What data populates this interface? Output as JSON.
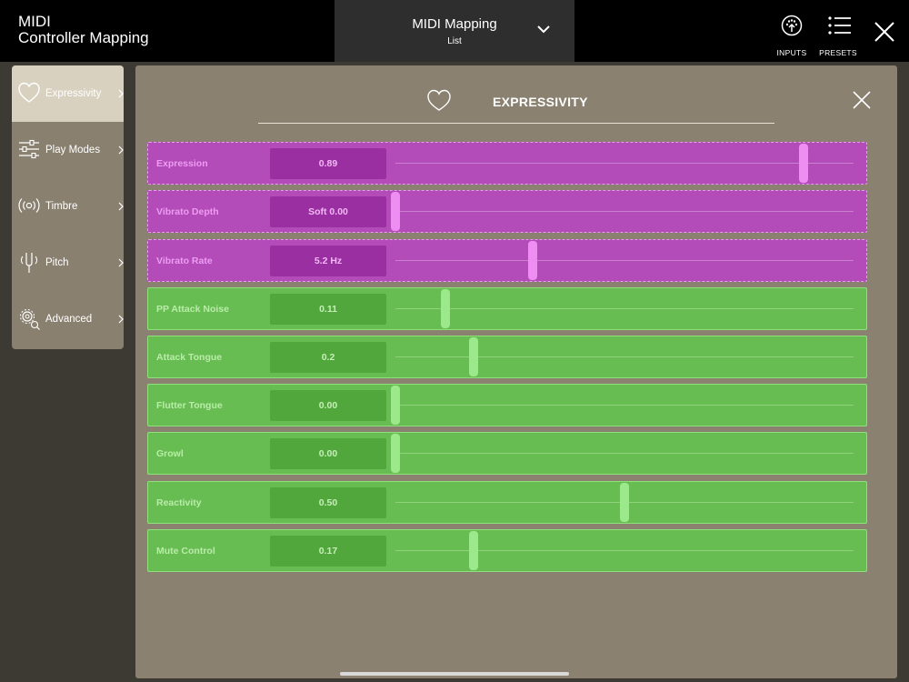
{
  "app": {
    "title_line1": "MIDI",
    "title_line2": "Controller Mapping"
  },
  "mapping": {
    "title": "MIDI Mapping",
    "subtitle": "List"
  },
  "toolbar": {
    "inputs_label": "INPUTS",
    "presets_label": "PRESETS"
  },
  "sidebar": {
    "items": [
      {
        "label": "Expressivity",
        "icon": "heart-icon",
        "active": true
      },
      {
        "label": "Play Modes",
        "icon": "sliders-icon",
        "active": false
      },
      {
        "label": "Timbre",
        "icon": "broadcast-icon",
        "active": false
      },
      {
        "label": "Pitch",
        "icon": "tuning-fork-icon",
        "active": false
      },
      {
        "label": "Advanced",
        "icon": "gears-icon",
        "active": false
      }
    ]
  },
  "panel": {
    "title": "EXPRESSIVITY",
    "icon": "heart-icon",
    "rows": [
      {
        "label": "Expression",
        "value": "0.89",
        "level": 0.89,
        "style": "purple"
      },
      {
        "label": "Vibrato Depth",
        "value": "Soft 0.00",
        "level": 0.0,
        "style": "purple"
      },
      {
        "label": "Vibrato Rate",
        "value": "5.2 Hz",
        "level": 0.3,
        "style": "purple"
      },
      {
        "label": "PP Attack Noise",
        "value": "0.11",
        "level": 0.11,
        "style": "green"
      },
      {
        "label": "Attack Tongue",
        "value": "0.2",
        "level": 0.17,
        "style": "green"
      },
      {
        "label": "Flutter Tongue",
        "value": "0.00",
        "level": 0.0,
        "style": "green"
      },
      {
        "label": "Growl",
        "value": "0.00",
        "level": 0.0,
        "style": "green"
      },
      {
        "label": "Reactivity",
        "value": "0.50",
        "level": 0.5,
        "style": "green"
      },
      {
        "label": "Mute Control",
        "value": "0.17",
        "level": 0.17,
        "style": "green"
      }
    ]
  },
  "colors": {
    "purple_row": "#b34cb8",
    "green_row": "#67bd52",
    "panel_bg": "#8a8170",
    "topbar_bg": "#000000"
  }
}
